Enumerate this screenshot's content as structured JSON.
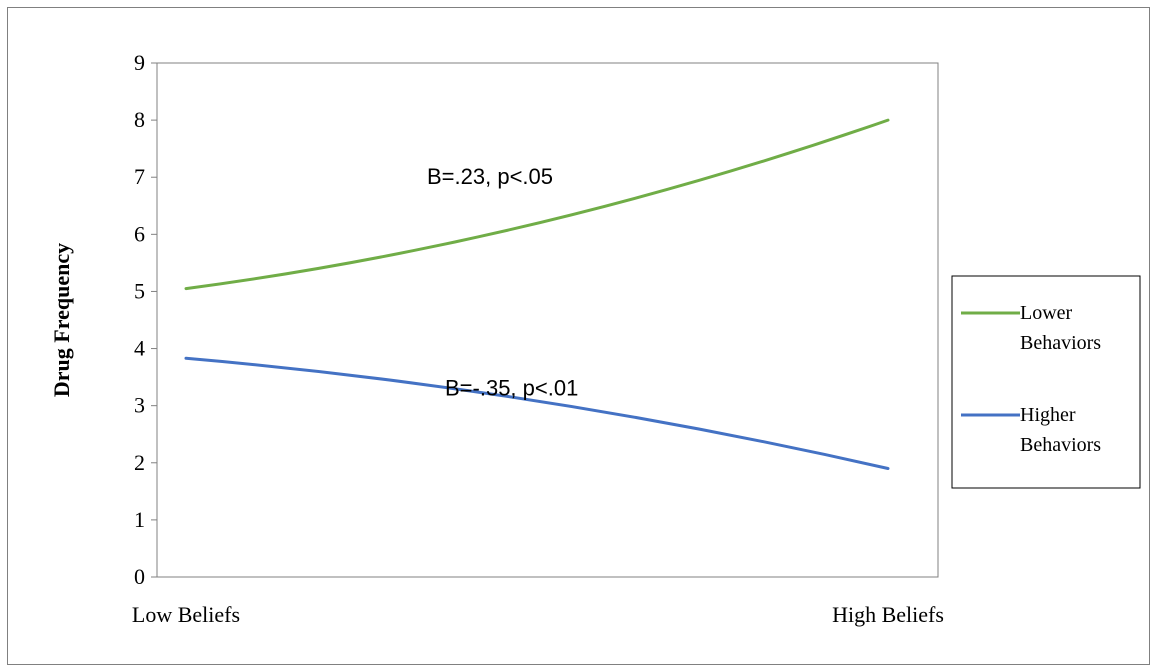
{
  "chart_data": {
    "type": "line",
    "title": "",
    "xlabel": "",
    "ylabel": "Drug Frequency",
    "categories": [
      "Low Beliefs",
      "High Beliefs"
    ],
    "ylim": [
      0,
      9
    ],
    "yticks": [
      0,
      1,
      2,
      3,
      4,
      5,
      6,
      7,
      8,
      9
    ],
    "grid": false,
    "legend_position": "right",
    "series": [
      {
        "name": "Lower Behaviors",
        "color": "#70AD47",
        "values": [
          5.05,
          8.0
        ]
      },
      {
        "name": "Higher Behaviors",
        "color": "#4472C4",
        "values": [
          3.83,
          1.9
        ]
      }
    ],
    "annotations": [
      {
        "text": "B=.23, p<.05",
        "series": "Lower Behaviors"
      },
      {
        "text": "B=-.35, p<.01",
        "series": "Higher Behaviors"
      }
    ]
  }
}
